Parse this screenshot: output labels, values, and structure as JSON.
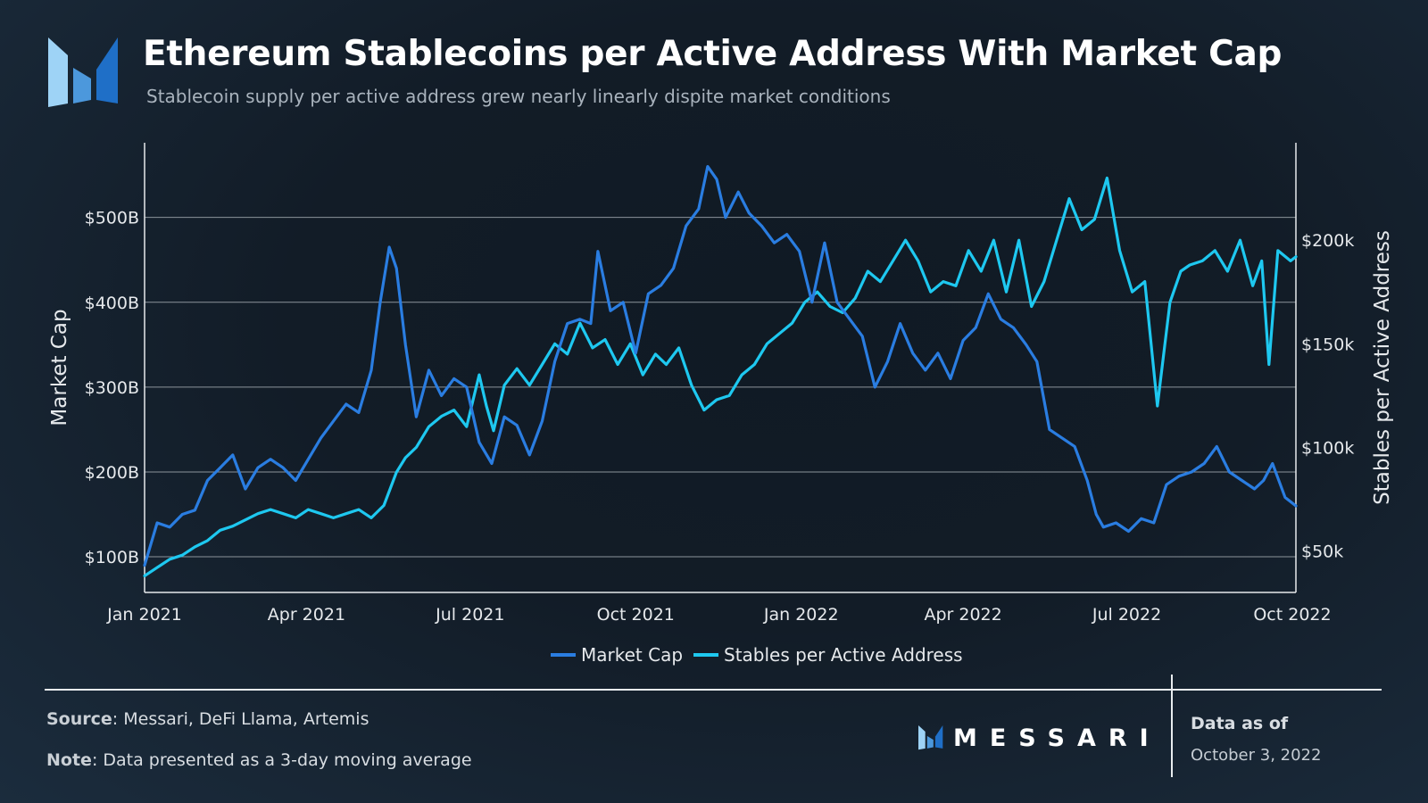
{
  "header": {
    "title": "Ethereum Stablecoins per Active Address With Market Cap",
    "subtitle": "Stablecoin supply per active address grew nearly linearly dispite market conditions"
  },
  "colors": {
    "market_cap": "#2a7de1",
    "stables": "#1ec8f0",
    "grid": "#8c949b",
    "axis_text": "#e6e9ec"
  },
  "chart_data": {
    "type": "line",
    "title": "Ethereum Stablecoins per Active Address With Market Cap",
    "x_ticks": [
      "Jan 2021",
      "Apr 2021",
      "Jul 2021",
      "Oct 2021",
      "Jan 2022",
      "Apr 2022",
      "Jul 2022",
      "Oct 2022"
    ],
    "xlim": [
      "2021-01-01",
      "2022-10-03"
    ],
    "y_left": {
      "label": "Market Cap",
      "ticks": [
        "$100B",
        "$200B",
        "$300B",
        "$400B",
        "$500B"
      ],
      "tick_values": [
        100,
        200,
        300,
        400,
        500
      ],
      "range": [
        58,
        588
      ],
      "unit": "B USD"
    },
    "y_right": {
      "label": "Stables per Active Address",
      "ticks": [
        "$50k",
        "$100k",
        "$150k",
        "$200k"
      ],
      "tick_values": [
        50000,
        100000,
        150000,
        200000
      ],
      "range": [
        30000,
        247000
      ]
    },
    "grid": true,
    "legend_position": "bottom-center",
    "series": [
      {
        "name": "Market Cap",
        "axis": "left",
        "dates": [
          "2021-01-01",
          "2021-01-08",
          "2021-01-15",
          "2021-01-22",
          "2021-01-29",
          "2021-02-05",
          "2021-02-12",
          "2021-02-19",
          "2021-02-26",
          "2021-03-05",
          "2021-03-12",
          "2021-03-19",
          "2021-03-26",
          "2021-04-02",
          "2021-04-09",
          "2021-04-16",
          "2021-04-23",
          "2021-04-30",
          "2021-05-07",
          "2021-05-12",
          "2021-05-17",
          "2021-05-21",
          "2021-05-26",
          "2021-06-01",
          "2021-06-08",
          "2021-06-15",
          "2021-06-22",
          "2021-06-29",
          "2021-07-06",
          "2021-07-13",
          "2021-07-20",
          "2021-07-27",
          "2021-08-03",
          "2021-08-10",
          "2021-08-17",
          "2021-08-24",
          "2021-08-31",
          "2021-09-06",
          "2021-09-10",
          "2021-09-17",
          "2021-09-24",
          "2021-10-01",
          "2021-10-08",
          "2021-10-15",
          "2021-10-22",
          "2021-10-29",
          "2021-11-05",
          "2021-11-10",
          "2021-11-15",
          "2021-11-20",
          "2021-11-27",
          "2021-12-03",
          "2021-12-10",
          "2021-12-17",
          "2021-12-24",
          "2021-12-31",
          "2022-01-07",
          "2022-01-14",
          "2022-01-21",
          "2022-01-28",
          "2022-02-04",
          "2022-02-11",
          "2022-02-18",
          "2022-02-25",
          "2022-03-04",
          "2022-03-11",
          "2022-03-18",
          "2022-03-25",
          "2022-04-01",
          "2022-04-08",
          "2022-04-15",
          "2022-04-22",
          "2022-04-29",
          "2022-05-06",
          "2022-05-12",
          "2022-05-19",
          "2022-05-26",
          "2022-06-02",
          "2022-06-09",
          "2022-06-14",
          "2022-06-18",
          "2022-06-25",
          "2022-07-02",
          "2022-07-09",
          "2022-07-16",
          "2022-07-23",
          "2022-07-30",
          "2022-08-06",
          "2022-08-13",
          "2022-08-20",
          "2022-08-27",
          "2022-09-03",
          "2022-09-10",
          "2022-09-15",
          "2022-09-20",
          "2022-09-27",
          "2022-10-03"
        ],
        "values": [
          90,
          140,
          135,
          150,
          155,
          190,
          205,
          220,
          180,
          205,
          215,
          205,
          190,
          215,
          240,
          260,
          280,
          270,
          320,
          400,
          465,
          440,
          350,
          265,
          320,
          290,
          310,
          300,
          235,
          210,
          265,
          255,
          220,
          260,
          330,
          375,
          380,
          375,
          460,
          390,
          400,
          340,
          410,
          420,
          440,
          490,
          510,
          560,
          545,
          500,
          530,
          505,
          490,
          470,
          480,
          460,
          400,
          470,
          400,
          380,
          360,
          300,
          330,
          375,
          340,
          320,
          340,
          310,
          355,
          370,
          410,
          380,
          370,
          350,
          330,
          250,
          240,
          230,
          190,
          150,
          135,
          140,
          130,
          145,
          140,
          185,
          195,
          200,
          210,
          230,
          200,
          190,
          180,
          190,
          210,
          170,
          160
        ]
      },
      {
        "name": "Stables per Active Address",
        "axis": "right",
        "dates": [
          "2021-01-01",
          "2021-01-08",
          "2021-01-15",
          "2021-01-22",
          "2021-01-29",
          "2021-02-05",
          "2021-02-12",
          "2021-02-19",
          "2021-02-26",
          "2021-03-05",
          "2021-03-12",
          "2021-03-19",
          "2021-03-26",
          "2021-04-02",
          "2021-04-09",
          "2021-04-16",
          "2021-04-23",
          "2021-04-30",
          "2021-05-07",
          "2021-05-14",
          "2021-05-21",
          "2021-05-26",
          "2021-06-01",
          "2021-06-08",
          "2021-06-15",
          "2021-06-22",
          "2021-06-29",
          "2021-07-06",
          "2021-07-10",
          "2021-07-14",
          "2021-07-20",
          "2021-07-27",
          "2021-08-03",
          "2021-08-10",
          "2021-08-17",
          "2021-08-24",
          "2021-08-31",
          "2021-09-07",
          "2021-09-14",
          "2021-09-21",
          "2021-09-28",
          "2021-10-05",
          "2021-10-12",
          "2021-10-18",
          "2021-10-25",
          "2021-11-01",
          "2021-11-08",
          "2021-11-15",
          "2021-11-22",
          "2021-11-29",
          "2021-12-06",
          "2021-12-13",
          "2021-12-20",
          "2021-12-27",
          "2022-01-03",
          "2022-01-10",
          "2022-01-17",
          "2022-01-24",
          "2022-01-31",
          "2022-02-07",
          "2022-02-14",
          "2022-02-21",
          "2022-02-28",
          "2022-03-07",
          "2022-03-14",
          "2022-03-21",
          "2022-03-28",
          "2022-04-04",
          "2022-04-11",
          "2022-04-18",
          "2022-04-25",
          "2022-05-02",
          "2022-05-09",
          "2022-05-16",
          "2022-05-23",
          "2022-05-30",
          "2022-06-06",
          "2022-06-13",
          "2022-06-20",
          "2022-06-27",
          "2022-07-04",
          "2022-07-11",
          "2022-07-18",
          "2022-07-25",
          "2022-07-31",
          "2022-08-05",
          "2022-08-12",
          "2022-08-19",
          "2022-08-26",
          "2022-09-02",
          "2022-09-09",
          "2022-09-14",
          "2022-09-18",
          "2022-09-23",
          "2022-09-30",
          "2022-10-03"
        ],
        "values": [
          38000,
          42000,
          46000,
          48000,
          52000,
          55000,
          60000,
          62000,
          65000,
          68000,
          70000,
          68000,
          66000,
          70000,
          68000,
          66000,
          68000,
          70000,
          66000,
          72000,
          88000,
          95000,
          100000,
          110000,
          115000,
          118000,
          110000,
          135000,
          120000,
          108000,
          130000,
          138000,
          130000,
          140000,
          150000,
          145000,
          160000,
          148000,
          152000,
          140000,
          150000,
          135000,
          145000,
          140000,
          148000,
          130000,
          118000,
          123000,
          125000,
          135000,
          140000,
          150000,
          155000,
          160000,
          170000,
          175000,
          168000,
          165000,
          172000,
          185000,
          180000,
          190000,
          200000,
          190000,
          175000,
          180000,
          178000,
          195000,
          185000,
          200000,
          175000,
          200000,
          168000,
          180000,
          200000,
          220000,
          205000,
          210000,
          230000,
          195000,
          175000,
          180000,
          120000,
          170000,
          185000,
          188000,
          190000,
          195000,
          185000,
          200000,
          178000,
          190000,
          140000,
          195000,
          190000,
          192000
        ]
      }
    ]
  },
  "footer": {
    "source_label": "Source",
    "source_text": ": Messari, DeFi Llama, Artemis",
    "note_label": "Note",
    "note_text": ": Data presented as a 3-day moving average",
    "brand": "MESSARI",
    "as_of_label": "Data as of",
    "as_of_date": "October 3, 2022"
  }
}
